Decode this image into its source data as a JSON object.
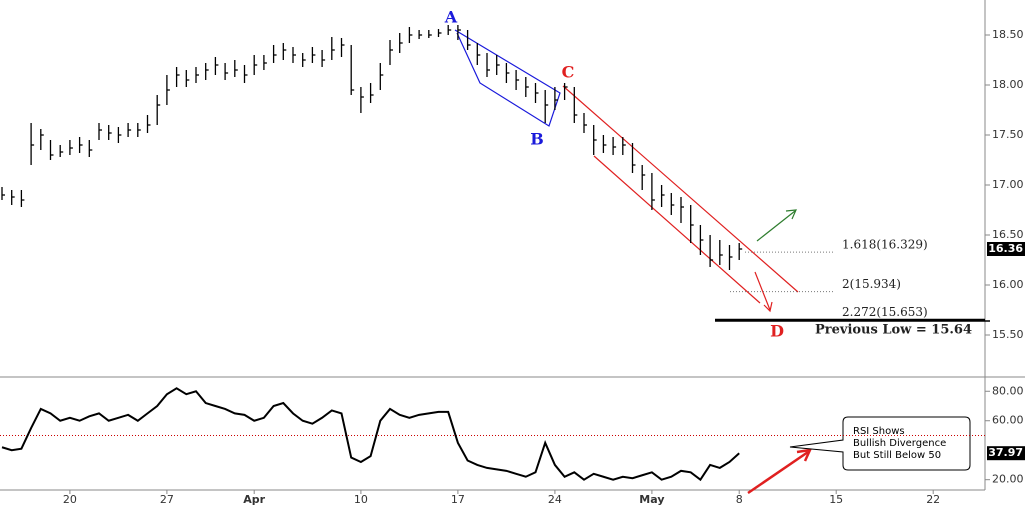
{
  "chart_data": {
    "type": "ohlc",
    "categories": [
      null,
      null,
      null,
      null,
      null,
      null,
      null,
      "20",
      null,
      null,
      null,
      null,
      null,
      null,
      null,
      null,
      null,
      "27",
      null,
      null,
      null,
      null,
      null,
      null,
      null,
      null,
      "Apr",
      null,
      null,
      null,
      null,
      null,
      null,
      null,
      null,
      null,
      null,
      "10",
      null,
      null,
      null,
      null,
      null,
      null,
      null,
      null,
      null,
      "17",
      null,
      null,
      null,
      null,
      null,
      null,
      null,
      null,
      null,
      "24",
      null,
      null,
      null,
      null,
      null,
      null,
      null,
      null,
      null,
      "May",
      null,
      null,
      null,
      null,
      null,
      null,
      null,
      null,
      "8",
      null,
      null,
      null,
      null,
      null,
      null,
      null,
      null,
      null,
      "15",
      null,
      null,
      null,
      null,
      null,
      null,
      null,
      null,
      null,
      "22",
      null,
      null,
      null
    ],
    "high": [
      16.98,
      16.95,
      16.95,
      17.62,
      17.56,
      17.45,
      17.4,
      17.45,
      17.48,
      17.45,
      17.62,
      17.6,
      17.58,
      17.62,
      17.62,
      17.7,
      17.9,
      18.1,
      18.18,
      18.15,
      18.18,
      18.22,
      18.28,
      18.22,
      18.25,
      18.2,
      18.3,
      18.3,
      18.4,
      18.42,
      18.38,
      18.32,
      18.38,
      18.35,
      18.48,
      18.47,
      18.4,
      17.98,
      18.02,
      18.22,
      18.45,
      18.52,
      18.58,
      18.55,
      18.55,
      18.56,
      18.6,
      18.6,
      18.55,
      18.42,
      18.32,
      18.3,
      18.22,
      18.15,
      18.08,
      18.02,
      17.95,
      17.98,
      18.02,
      17.98,
      17.72,
      17.6,
      17.5,
      17.48,
      17.48,
      17.42,
      17.2,
      17.12,
      17.0,
      16.92,
      16.88,
      16.8,
      16.6,
      16.5,
      16.45,
      16.4,
      16.42,
      null,
      null,
      null,
      null,
      null,
      null,
      null,
      null,
      null,
      null,
      null,
      null,
      null,
      null,
      null,
      null,
      null,
      null,
      null,
      null,
      null,
      null,
      null
    ],
    "low": [
      16.85,
      16.8,
      16.78,
      17.2,
      17.35,
      17.25,
      17.28,
      17.3,
      17.32,
      17.28,
      17.45,
      17.45,
      17.42,
      17.48,
      17.48,
      17.52,
      17.6,
      17.8,
      17.98,
      17.98,
      18.02,
      18.05,
      18.1,
      18.05,
      18.08,
      18.02,
      18.1,
      18.15,
      18.22,
      18.25,
      18.22,
      18.18,
      18.22,
      18.18,
      18.25,
      18.28,
      17.9,
      17.72,
      17.82,
      17.95,
      18.2,
      18.32,
      18.42,
      18.46,
      18.47,
      18.48,
      18.5,
      18.45,
      18.35,
      18.2,
      18.08,
      18.1,
      18.02,
      17.95,
      17.88,
      17.82,
      17.62,
      17.75,
      17.85,
      17.62,
      17.52,
      17.3,
      17.32,
      17.3,
      17.3,
      17.12,
      16.95,
      16.75,
      16.78,
      16.7,
      16.62,
      16.42,
      16.3,
      16.18,
      16.2,
      16.15,
      16.25,
      null,
      null,
      null,
      null,
      null,
      null,
      null,
      null,
      null,
      null,
      null,
      null,
      null,
      null,
      null,
      null,
      null,
      null,
      null,
      null,
      null,
      null,
      null
    ],
    "close": [
      16.9,
      16.88,
      16.85,
      17.4,
      17.5,
      17.3,
      17.33,
      17.37,
      17.4,
      17.35,
      17.55,
      17.52,
      17.5,
      17.55,
      17.55,
      17.6,
      17.8,
      17.95,
      18.1,
      18.05,
      18.1,
      18.15,
      18.2,
      18.12,
      18.15,
      18.1,
      18.2,
      18.22,
      18.3,
      18.35,
      18.3,
      18.25,
      18.3,
      18.25,
      18.35,
      18.4,
      17.95,
      17.88,
      17.9,
      18.1,
      18.35,
      18.42,
      18.5,
      18.5,
      18.5,
      18.52,
      18.55,
      18.55,
      18.4,
      18.3,
      18.15,
      18.2,
      18.12,
      18.05,
      17.98,
      17.92,
      17.8,
      17.85,
      17.98,
      17.7,
      17.6,
      17.45,
      17.4,
      17.38,
      17.4,
      17.2,
      17.1,
      16.85,
      16.9,
      16.8,
      16.78,
      16.6,
      16.45,
      16.25,
      16.3,
      16.28,
      16.36,
      null,
      null,
      null,
      null,
      null,
      null,
      null,
      null,
      null,
      null,
      null,
      null,
      null,
      null,
      null,
      null,
      null,
      null,
      null,
      null,
      null,
      null,
      null
    ],
    "color": "#000000",
    "ylim": [
      15.15,
      18.85
    ],
    "yticks": [
      {
        "value": 15.5,
        "label": "15.50"
      },
      {
        "value": 16,
        "label": "16.00"
      },
      {
        "value": 16.5,
        "label": "16.50"
      },
      {
        "value": 17,
        "label": "17.00"
      },
      {
        "value": 17.5,
        "label": "17.50"
      },
      {
        "value": 18,
        "label": "18.00"
      },
      {
        "value": 18.5,
        "label": "18.50"
      }
    ],
    "levels": [
      {
        "label": "1.618(16.329)",
        "value": 16.329
      },
      {
        "label": "2(15.934)",
        "value": 15.934
      },
      {
        "label": "2.272(15.653)",
        "value": 15.653
      },
      {
        "label": "Previous Low = 15.64",
        "value": 15.64
      }
    ],
    "waves": [
      "A",
      "B",
      "C",
      "D"
    ],
    "rsi": {
      "type": "line",
      "values": [
        42,
        40,
        41,
        55,
        68,
        65,
        60,
        62,
        60,
        63,
        65,
        60,
        62,
        64,
        60,
        65,
        70,
        78,
        82,
        78,
        80,
        72,
        70,
        68,
        65,
        64,
        60,
        62,
        70,
        72,
        65,
        60,
        58,
        62,
        67,
        65,
        35,
        32,
        36,
        60,
        68,
        64,
        62,
        64,
        65,
        66,
        66,
        45,
        33,
        30,
        28,
        27,
        26,
        24,
        22,
        25,
        45,
        30,
        22,
        25,
        20,
        24,
        22,
        20,
        22,
        21,
        23,
        25,
        20,
        22,
        26,
        25,
        20,
        30,
        28,
        32,
        37.97,
        null,
        null,
        null,
        null,
        null,
        null,
        null,
        null,
        null,
        null,
        null,
        null,
        null,
        null,
        null,
        null,
        null,
        null,
        null,
        null,
        null,
        null,
        null
      ],
      "color": "#000000",
      "ylim": [
        13,
        89
      ],
      "yticks": [
        {
          "value": 20,
          "label": "20.00"
        },
        {
          "value": 60,
          "label": "60.00"
        },
        {
          "value": 80,
          "label": "80.00"
        }
      ],
      "reference": 50,
      "note": [
        "RSI Shows",
        "Bullish Divergence",
        "But Still Below 50"
      ]
    }
  }
}
